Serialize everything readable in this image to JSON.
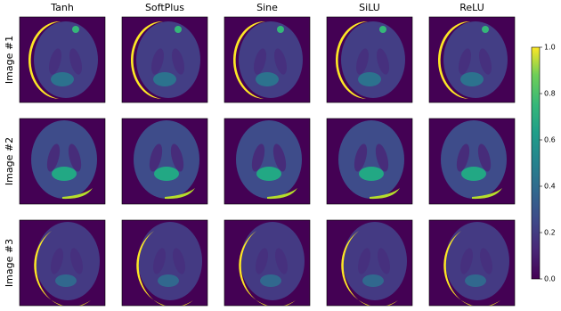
{
  "chart_data": {
    "type": "image_grid",
    "columns": [
      "Tanh",
      "SoftPlus",
      "Sine",
      "SiLU",
      "ReLU"
    ],
    "rows": [
      "Image #1",
      "Image #2",
      "Image #3"
    ],
    "colorbar": {
      "lim": [
        0,
        1
      ],
      "ticks": [
        {
          "value": 0,
          "label": "0.0"
        },
        0.2,
        0.4,
        0.6,
        0.8,
        {
          "value": 1,
          "label": "1.0"
        }
      ]
    }
  }
}
